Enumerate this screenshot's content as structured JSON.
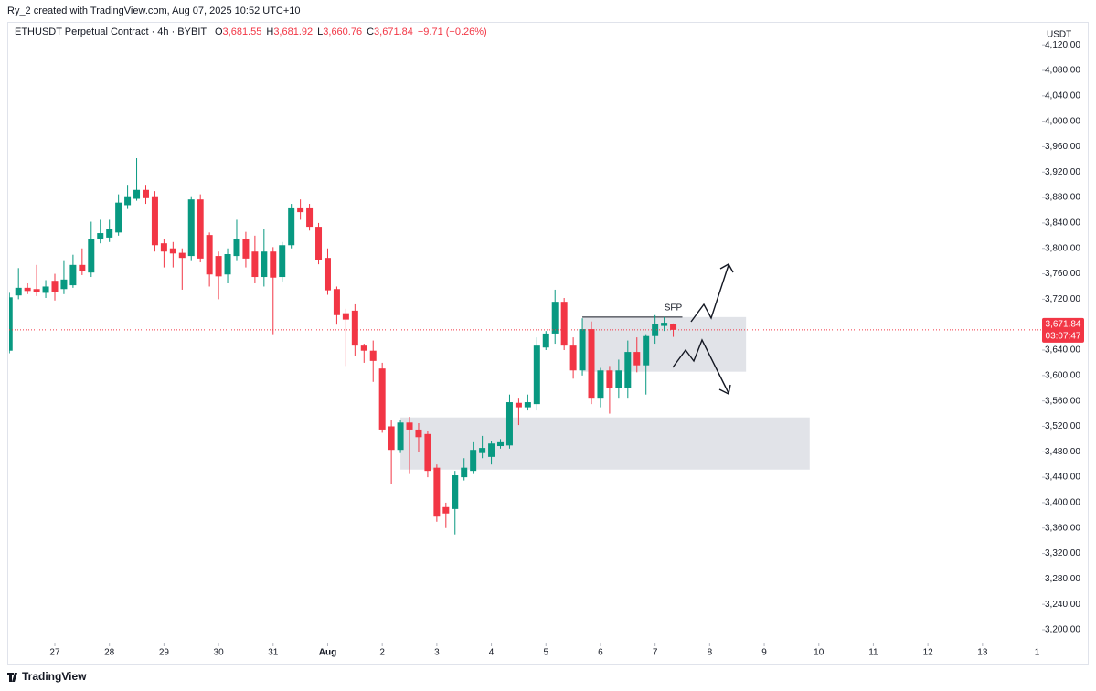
{
  "header": "Ry_2 created with TradingView.com, Aug 07, 2025 10:52 UTC+10",
  "legend": {
    "symbol": "ETHUSDT Perpetual Contract · 4h · BYBIT",
    "items": [
      {
        "key": "O",
        "text": "3,681.55"
      },
      {
        "key": "H",
        "text": "3,681.92"
      },
      {
        "key": "L",
        "text": "3,660.76"
      },
      {
        "key": "C",
        "text": "3,671.84"
      }
    ],
    "change": "−9.71 (−0.26%)"
  },
  "footer": "TradingView",
  "chart_data": {
    "type": "candlestick",
    "up_color": "#089981",
    "down_color": "#f23645",
    "currency": "USDT",
    "x": [
      -20,
      -16,
      -12,
      -8,
      -4,
      0,
      4,
      8,
      12,
      16,
      20,
      24,
      28,
      32,
      36,
      40,
      44,
      48,
      52,
      56,
      60,
      64,
      68,
      72,
      76,
      80,
      84,
      88,
      92,
      96,
      100,
      104,
      108,
      112,
      116,
      120,
      124,
      128,
      132,
      136,
      140,
      144,
      148,
      152,
      156,
      160,
      164,
      168,
      172,
      176,
      180,
      184,
      188,
      192,
      196,
      200,
      204,
      208,
      212,
      216,
      220,
      224,
      228,
      232,
      236,
      240,
      244,
      248,
      252,
      256,
      260,
      264,
      268,
      272
    ],
    "open": [
      3639,
      3726,
      3738,
      3736,
      3730,
      3749,
      3736,
      3742,
      3774,
      3762,
      3814,
      3817,
      3825,
      3868,
      3878,
      3892,
      3882,
      3808,
      3800,
      3793,
      3788,
      3877,
      3821,
      3788,
      3759,
      3788,
      3814,
      3795,
      3755,
      3795,
      3755,
      3805,
      3863,
      3863,
      3834,
      3785,
      3736,
      3698,
      3702,
      3647,
      3639,
      3611,
      3520,
      3483,
      3526,
      3515,
      3508,
      3455,
      3393,
      3390,
      3440,
      3450,
      3478,
      3472,
      3489,
      3490,
      3557,
      3550,
      3555,
      3644,
      3666,
      3716,
      3647,
      3608,
      3673,
      3565,
      3608,
      3580,
      3580,
      3637,
      3616,
      3662,
      3678,
      3681.55
    ],
    "high": [
      3730,
      3769,
      3745,
      3774,
      3750,
      3760,
      3780,
      3790,
      3800,
      3842,
      3845,
      3845,
      3885,
      3900,
      3942,
      3900,
      3890,
      3815,
      3810,
      3800,
      3882,
      3885,
      3825,
      3795,
      3800,
      3845,
      3826,
      3820,
      3830,
      3802,
      3810,
      3870,
      3877,
      3870,
      3840,
      3800,
      3740,
      3705,
      3712,
      3650,
      3655,
      3620,
      3530,
      3530,
      3535,
      3525,
      3512,
      3460,
      3400,
      3450,
      3470,
      3495,
      3505,
      3497,
      3500,
      3570,
      3565,
      3570,
      3660,
      3670,
      3735,
      3722,
      3660,
      3690,
      3685,
      3612,
      3615,
      3625,
      3655,
      3660,
      3665,
      3695,
      3692,
      3681.92
    ],
    "low": [
      3635,
      3720,
      3728,
      3725,
      3722,
      3718,
      3728,
      3738,
      3758,
      3755,
      3808,
      3810,
      3820,
      3862,
      3875,
      3870,
      3795,
      3770,
      3770,
      3735,
      3780,
      3778,
      3740,
      3720,
      3745,
      3780,
      3770,
      3745,
      3740,
      3665,
      3748,
      3800,
      3845,
      3828,
      3775,
      3727,
      3680,
      3615,
      3630,
      3620,
      3590,
      3510,
      3430,
      3478,
      3445,
      3480,
      3440,
      3370,
      3360,
      3350,
      3435,
      3445,
      3470,
      3460,
      3485,
      3485,
      3522,
      3545,
      3545,
      3640,
      3650,
      3640,
      3595,
      3600,
      3555,
      3550,
      3540,
      3565,
      3565,
      3605,
      3570,
      3650,
      3670,
      3660.76
    ],
    "close": [
      3723,
      3738,
      3733,
      3731,
      3740,
      3731,
      3751,
      3774,
      3765,
      3814,
      3824,
      3830,
      3872,
      3882,
      3892,
      3879,
      3805,
      3795,
      3792,
      3785,
      3877,
      3784,
      3759,
      3756,
      3791,
      3814,
      3784,
      3755,
      3795,
      3754,
      3805,
      3863,
      3857,
      3834,
      3781,
      3734,
      3695,
      3688,
      3647,
      3639,
      3623,
      3515,
      3483,
      3526,
      3515,
      3503,
      3450,
      3378,
      3383,
      3443,
      3455,
      3483,
      3486,
      3493,
      3495,
      3558,
      3550,
      3558,
      3647,
      3666,
      3716,
      3647,
      3608,
      3673,
      3565,
      3608,
      3580,
      3608,
      3637,
      3616,
      3662,
      3681,
      3683,
      3671.84
    ],
    "xlim": [
      -20.1,
      434.2
    ],
    "xticks": [
      {
        "value": 0,
        "label": "27"
      },
      {
        "value": 24,
        "label": "28"
      },
      {
        "value": 48,
        "label": "29"
      },
      {
        "value": 72,
        "label": "30"
      },
      {
        "value": 96,
        "label": "31"
      },
      {
        "value": 120,
        "label": "Aug"
      },
      {
        "value": 144,
        "label": "2"
      },
      {
        "value": 168,
        "label": "3"
      },
      {
        "value": 192,
        "label": "4"
      },
      {
        "value": 216,
        "label": "5"
      },
      {
        "value": 240,
        "label": "6"
      },
      {
        "value": 264,
        "label": "7"
      },
      {
        "value": 288,
        "label": "8"
      },
      {
        "value": 312,
        "label": "9"
      },
      {
        "value": 336,
        "label": "10"
      },
      {
        "value": 360,
        "label": "11"
      },
      {
        "value": 384,
        "label": "12"
      },
      {
        "value": 408,
        "label": "13"
      },
      {
        "value": 432,
        "label": "1"
      }
    ],
    "ylim": [
      3184.2,
      4147.6
    ],
    "yticks": [
      {
        "value": 3200,
        "label": "3,200.00"
      },
      {
        "value": 3240,
        "label": "3,240.00"
      },
      {
        "value": 3280,
        "label": "3,280.00"
      },
      {
        "value": 3320,
        "label": "3,320.00"
      },
      {
        "value": 3360,
        "label": "3,360.00"
      },
      {
        "value": 3400,
        "label": "3,400.00"
      },
      {
        "value": 3440,
        "label": "3,440.00"
      },
      {
        "value": 3480,
        "label": "3,480.00"
      },
      {
        "value": 3520,
        "label": "3,520.00"
      },
      {
        "value": 3560,
        "label": "3,560.00"
      },
      {
        "value": 3600,
        "label": "3,600.00"
      },
      {
        "value": 3640,
        "label": "3,640.00"
      },
      {
        "value": 3680,
        "label": "3,680.00"
      },
      {
        "value": 3720,
        "label": "3,720.00"
      },
      {
        "value": 3760,
        "label": "3,760.00"
      },
      {
        "value": 3800,
        "label": "3,800.00"
      },
      {
        "value": 3840,
        "label": "3,840.00"
      },
      {
        "value": 3880,
        "label": "3,880.00"
      },
      {
        "value": 3920,
        "label": "3,920.00"
      },
      {
        "value": 3960,
        "label": "3,960.00"
      },
      {
        "value": 4000,
        "label": "4,000.00"
      },
      {
        "value": 4040,
        "label": "4,040.00"
      },
      {
        "value": 4080,
        "label": "4,080.00"
      },
      {
        "value": 4120,
        "label": "4,120.00"
      }
    ],
    "last_price": {
      "value": 3671.84,
      "label": "3,671.84"
    },
    "countdown": "03:07:47",
    "zones": [
      {
        "x": [
          152,
          332
        ],
        "y": [
          3452,
          3534
        ],
        "color": "#d1d4dc"
      },
      {
        "x": [
          232,
          304
        ],
        "y": [
          3606,
          3692
        ],
        "color": "#d1d4dc"
      }
    ],
    "level": {
      "x": [
        232,
        276
      ],
      "y": 3692,
      "label": "SFP"
    }
  }
}
